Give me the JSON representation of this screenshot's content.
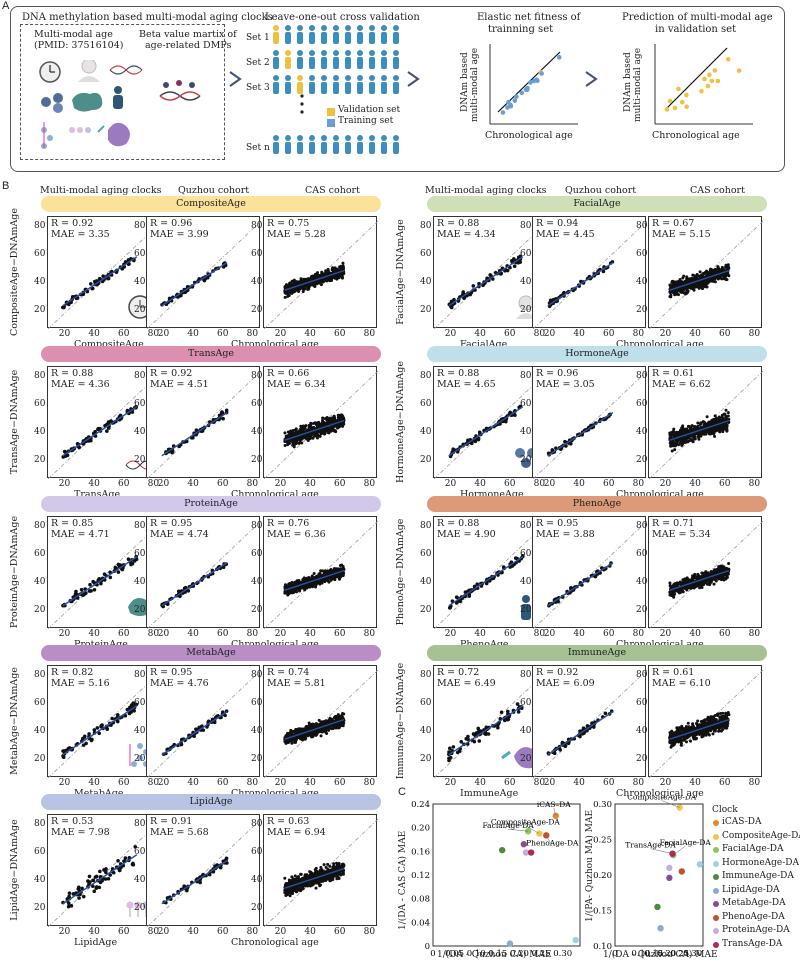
{
  "panel_labels": {
    "a": "A",
    "b": "B",
    "c": "C"
  },
  "panelA": {
    "box_title": "DNA methylation based multi-modal aging clocks",
    "mm_age_line1": "Multi-modal age",
    "mm_age_line2": "(PMID: 37516104)",
    "beta_line1": "Beta value martix of",
    "beta_line2": "age-related DMPs",
    "loo_title": "Leave-one-out cross validation",
    "sets": [
      "Set 1",
      "Set 2",
      "Set 3",
      "Set n"
    ],
    "legend_validation": "Validation set",
    "legend_training": "Training set",
    "enet_line1": "Elastic net fitness of",
    "enet_line2": "trainning set",
    "pred_line1": "Prediction of multi-modal age",
    "pred_line2": "in validation set",
    "yaxis_line1": "DNAm based",
    "yaxis_line2": "multi-modal age",
    "xaxis": "Chronological age",
    "colors": {
      "validation": "#f0c040",
      "training": "#6a9fd4",
      "person": "#3d8ec0"
    }
  },
  "col_headers": {
    "c1": "Multi-modal aging clocks",
    "c2": "Quzhou cohort",
    "c3": "CAS cohort"
  },
  "clocks": [
    {
      "name": "CompositeAge",
      "ylabel": "CompositeAge−DNAmAge",
      "xlabel": "CompositeAge",
      "color": "#fbe29a",
      "icon": "clock-icon",
      "stats": [
        {
          "r": "R = 0.92",
          "mae": "MAE = 3.35"
        },
        {
          "r": "R = 0.96",
          "mae": "MAE = 3.99"
        },
        {
          "r": "R = 0.75",
          "mae": "MAE = 5.28"
        }
      ]
    },
    {
      "name": "FacialAge",
      "ylabel": "FacialAge−DNAmAge",
      "xlabel": "FacialAge",
      "color": "#cfe0b8",
      "icon": "face-icon",
      "stats": [
        {
          "r": "R = 0.88",
          "mae": "MAE = 4.34"
        },
        {
          "r": "R = 0.94",
          "mae": "MAE = 4.45"
        },
        {
          "r": "R = 0.67",
          "mae": "MAE = 5.15"
        }
      ]
    },
    {
      "name": "TransAge",
      "ylabel": "TransAge−DNAmAge",
      "xlabel": "TransAge",
      "color": "#dc8fb0",
      "icon": "dna-icon",
      "stats": [
        {
          "r": "R = 0.88",
          "mae": "MAE = 4.36"
        },
        {
          "r": "R = 0.92",
          "mae": "MAE = 4.51"
        },
        {
          "r": "R = 0.66",
          "mae": "MAE = 6.34"
        }
      ]
    },
    {
      "name": "HormoneAge",
      "ylabel": "HormoneAge−DNAmAge",
      "xlabel": "HormoneAge",
      "color": "#bfe0ea",
      "icon": "hormone-icon",
      "stats": [
        {
          "r": "R = 0.88",
          "mae": "MAE = 4.65"
        },
        {
          "r": "R = 0.96",
          "mae": "MAE = 3.05"
        },
        {
          "r": "R = 0.61",
          "mae": "MAE = 6.62"
        }
      ]
    },
    {
      "name": "ProteinAge",
      "ylabel": "ProteinAge−DNAmAge",
      "xlabel": "ProteinAge",
      "color": "#d2c8ea",
      "icon": "protein-icon",
      "stats": [
        {
          "r": "R = 0.85",
          "mae": "MAE = 4.71"
        },
        {
          "r": "R = 0.95",
          "mae": "MAE = 4.74"
        },
        {
          "r": "R = 0.76",
          "mae": "MAE = 6.36"
        }
      ]
    },
    {
      "name": "PhenoAge",
      "ylabel": "PhenoAge−DNAmAge",
      "xlabel": "PhenoAge",
      "color": "#dd9a78",
      "icon": "person-icon",
      "stats": [
        {
          "r": "R = 0.88",
          "mae": "MAE = 4.90"
        },
        {
          "r": "R = 0.95",
          "mae": "MAE = 3.88"
        },
        {
          "r": "R = 0.71",
          "mae": "MAE = 5.34"
        }
      ]
    },
    {
      "name": "MetabAge",
      "ylabel": "MetabAge−DNAmAge",
      "xlabel": "MetabAge",
      "color": "#b88ec4",
      "icon": "molecule-icon",
      "stats": [
        {
          "r": "R = 0.82",
          "mae": "MAE = 5.16"
        },
        {
          "r": "R = 0.95",
          "mae": "MAE = 4.76"
        },
        {
          "r": "R = 0.74",
          "mae": "MAE = 5.81"
        }
      ]
    },
    {
      "name": "ImmuneAge",
      "ylabel": "ImmuneAge−DNAmAge",
      "xlabel": "ImmuneAge",
      "color": "#a6c294",
      "icon": "cell-icon",
      "stats": [
        {
          "r": "R = 0.72",
          "mae": "MAE = 6.49"
        },
        {
          "r": "R = 0.92",
          "mae": "MAE = 6.09"
        },
        {
          "r": "R = 0.61",
          "mae": "MAE = 6.10"
        }
      ]
    },
    {
      "name": "LipidAge",
      "ylabel": "LipidAge−DNAmAge",
      "xlabel": "LipidAge",
      "color": "#b9c4e4",
      "icon": "lipid-icon",
      "stats": [
        {
          "r": "R = 0.53",
          "mae": "MAE = 7.98"
        },
        {
          "r": "R = 0.91",
          "mae": "MAE = 5.68"
        },
        {
          "r": "R = 0.63",
          "mae": "MAE = 6.94"
        }
      ]
    }
  ],
  "chron_label": "Chronological age",
  "axis_ticks": {
    "x": [
      "20",
      "40",
      "60",
      "80"
    ],
    "y": [
      "20",
      "40",
      "60",
      "80"
    ]
  },
  "chart_data": [
    {
      "type": "scatter",
      "title": "",
      "xlabel": "1/(DA - Quzhou CA) MAE",
      "ylabel": "1/(DA - CAS CA) MAE",
      "xlim": [
        0,
        0.34
      ],
      "ylim": [
        0,
        0.24
      ],
      "xticks": [
        "0",
        "0.05",
        "0.10",
        "0.15",
        "0.20",
        "0.25",
        "0.30"
      ],
      "yticks": [
        "0",
        "0.04",
        "0.08",
        "0.12",
        "0.16",
        "0.20",
        "0.24"
      ],
      "points": [
        {
          "name": "iCAS-DA",
          "x": 0.284,
          "y": 0.22,
          "label": "iCAS–DA",
          "color": "#e08a2c"
        },
        {
          "name": "CompositeAge-DA",
          "x": 0.246,
          "y": 0.19,
          "label": "CompositeAge-DA",
          "color": "#f4c74a"
        },
        {
          "name": "FacialAge-DA",
          "x": 0.22,
          "y": 0.194,
          "label": "FacialAge-DA",
          "color": "#8fc35e"
        },
        {
          "name": "HormoneAge-DA",
          "x": 0.33,
          "y": 0.01,
          "label": "",
          "color": "#9fd0e0"
        },
        {
          "name": "ImmuneAge-DA",
          "x": 0.16,
          "y": 0.162,
          "label": "",
          "color": "#4e8a3c"
        },
        {
          "name": "LipidAge-DA",
          "x": 0.178,
          "y": 0.004,
          "label": "",
          "color": "#8ea8d8"
        },
        {
          "name": "MetabAge-DA",
          "x": 0.21,
          "y": 0.172,
          "label": "",
          "color": "#8a4a9a"
        },
        {
          "name": "PhenoAge-DA",
          "x": 0.262,
          "y": 0.187,
          "label": "PhenoAge-DA",
          "color": "#c0532a"
        },
        {
          "name": "ProteinAge-DA",
          "x": 0.215,
          "y": 0.158,
          "label": "",
          "color": "#c2aee0"
        },
        {
          "name": "TransAge-DA",
          "x": 0.227,
          "y": 0.158,
          "label": "",
          "color": "#b0275a"
        }
      ]
    },
    {
      "type": "scatter",
      "title": "",
      "xlabel": "1/(DA - Quzhou CA) MAE",
      "ylabel": "1/(PA- Quzhou MA) MAE",
      "xlim": [
        0,
        0.34
      ],
      "ylim": [
        0.1,
        0.3
      ],
      "xticks": [
        "0",
        "0.05",
        "0.10",
        "0.15",
        "0.20",
        "0.25",
        "0.30"
      ],
      "yticks": [
        "0.10",
        "0.15",
        "0.20",
        "0.25",
        "0.30"
      ],
      "points": [
        {
          "name": "CompositeAge-DA",
          "x": 0.25,
          "y": 0.295,
          "label": "CompositeAge-DA",
          "color": "#f4c74a"
        },
        {
          "name": "FacialAge-DA",
          "x": 0.225,
          "y": 0.228,
          "label": "FacialAge-DA",
          "color": "#8fc35e"
        },
        {
          "name": "HormoneAge-DA",
          "x": 0.328,
          "y": 0.215,
          "label": "",
          "color": "#9fd0e0"
        },
        {
          "name": "ImmuneAge-DA",
          "x": 0.164,
          "y": 0.155,
          "label": "",
          "color": "#4e8a3c"
        },
        {
          "name": "LipidAge-DA",
          "x": 0.176,
          "y": 0.125,
          "label": "",
          "color": "#8ea8d8"
        },
        {
          "name": "MetabAge-DA",
          "x": 0.21,
          "y": 0.196,
          "label": "",
          "color": "#8a4a9a"
        },
        {
          "name": "PhenoAge-DA",
          "x": 0.258,
          "y": 0.205,
          "label": "",
          "color": "#c0532a"
        },
        {
          "name": "ProteinAge-DA",
          "x": 0.21,
          "y": 0.21,
          "label": "",
          "color": "#c2aee0"
        },
        {
          "name": "TransAge-DA",
          "x": 0.222,
          "y": 0.23,
          "label": "TransAge-DA",
          "color": "#b0275a"
        }
      ],
      "legend_title": "Clock",
      "legend": [
        {
          "name": "iCAS-DA",
          "color": "#e08a2c"
        },
        {
          "name": "CompositeAge-DA",
          "color": "#f4c74a"
        },
        {
          "name": "FacialAge-DA",
          "color": "#8fc35e"
        },
        {
          "name": "HormoneAge-DA",
          "color": "#9fd0e0"
        },
        {
          "name": "ImmuneAge-DA",
          "color": "#4e8a3c"
        },
        {
          "name": "LipidAge-DA",
          "color": "#8ea8d8"
        },
        {
          "name": "MetabAge-DA",
          "color": "#8a4a9a"
        },
        {
          "name": "PhenoAge-DA",
          "color": "#c0532a"
        },
        {
          "name": "ProteinAge-DA",
          "color": "#c2aee0"
        },
        {
          "name": "TransAge-DA",
          "color": "#b0275a"
        }
      ]
    }
  ]
}
